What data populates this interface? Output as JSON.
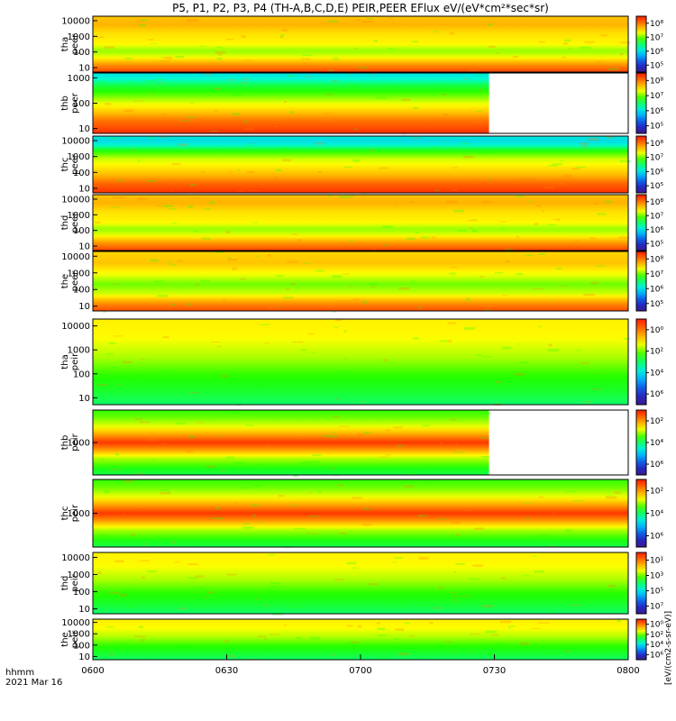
{
  "title": "P5, P1, P2, P3, P4 (TH-A,B,C,D,E) PEIR,PEER EFlux eV/(eV*cm²*sec*sr)",
  "colorbar_unit": "[eV/(cm2-s-sr-eV)]",
  "time_axis": {
    "label_line1": "hhmm",
    "label_line2": "2021 Mar 16",
    "ticks": [
      "0600",
      "0630",
      "0700",
      "0730",
      "0800"
    ]
  },
  "colors": {
    "scale": [
      "#ffffff",
      "#3a1c8c",
      "#1a2cd8",
      "#00a8ff",
      "#00ffd0",
      "#20ff00",
      "#ffff00",
      "#ff8000",
      "#ff1a00"
    ],
    "frame": "#000000"
  },
  "chart_data": {
    "type": "heatmap",
    "x_range": [
      "0600",
      "0800"
    ],
    "panels": [
      {
        "name_line1": "tha",
        "name_line2": "peer",
        "ylabels": [
          "10",
          "100",
          "1000",
          "10000"
        ],
        "cb_ticks": [
          "10⁵",
          "10⁶",
          "10⁷",
          "10⁸"
        ],
        "data_end": 1.0,
        "pattern": "peer"
      },
      {
        "name_line1": "thb",
        "name_line2": "peer",
        "ylabels": [
          "10",
          "100",
          "1000"
        ],
        "cb_ticks": [
          "10⁵",
          "10⁶",
          "10⁷",
          "10⁸"
        ],
        "data_end": 0.74,
        "pattern": "peer_b"
      },
      {
        "name_line1": "thc",
        "name_line2": "peer",
        "ylabels": [
          "10",
          "100",
          "1000",
          "10000"
        ],
        "cb_ticks": [
          "10⁵",
          "10⁶",
          "10⁷",
          "10⁸"
        ],
        "data_end": 1.0,
        "pattern": "peer_c"
      },
      {
        "name_line1": "thd",
        "name_line2": "peer",
        "ylabels": [
          "10",
          "100",
          "1000",
          "10000"
        ],
        "cb_ticks": [
          "10⁵",
          "10⁶",
          "10⁷",
          "10⁸"
        ],
        "data_end": 1.0,
        "pattern": "peer"
      },
      {
        "name_line1": "the",
        "name_line2": "peer",
        "ylabels": [
          "10",
          "100",
          "1000",
          "10000"
        ],
        "cb_ticks": [
          "10⁵",
          "10⁶",
          "10⁷",
          "10⁸"
        ],
        "data_end": 1.0,
        "pattern": "peer_e"
      },
      {
        "name_line1": "tha",
        "name_line2": "peir",
        "ylabels": [
          "10",
          "100",
          "1000",
          "10000"
        ],
        "cb_ticks": [
          "10⁶",
          "10⁴",
          "10²",
          "10⁰"
        ],
        "data_end": 1.0,
        "pattern": "peir"
      },
      {
        "name_line1": "thb",
        "name_line2": "peir",
        "ylabels": [
          "1000"
        ],
        "cb_ticks": [
          "10⁶",
          "10⁴",
          "10²"
        ],
        "data_end": 0.74,
        "pattern": "peir_b"
      },
      {
        "name_line1": "thc",
        "name_line2": "peir",
        "ylabels": [
          "1000"
        ],
        "cb_ticks": [
          "10⁶",
          "10⁴",
          "10²"
        ],
        "data_end": 1.0,
        "pattern": "peir_b"
      },
      {
        "name_line1": "thd",
        "name_line2": "peir",
        "ylabels": [
          "10",
          "100",
          "1000",
          "10000"
        ],
        "cb_ticks": [
          "10⁷",
          "10⁵",
          "10³",
          "10¹"
        ],
        "data_end": 1.0,
        "pattern": "peir"
      },
      {
        "name_line1": "the",
        "name_line2": "peir",
        "ylabels": [
          "10",
          "100",
          "1000",
          "10000"
        ],
        "cb_ticks": [
          "10⁶",
          "10⁴",
          "10²",
          "10⁰"
        ],
        "data_end": 1.0,
        "pattern": "peir"
      }
    ]
  }
}
